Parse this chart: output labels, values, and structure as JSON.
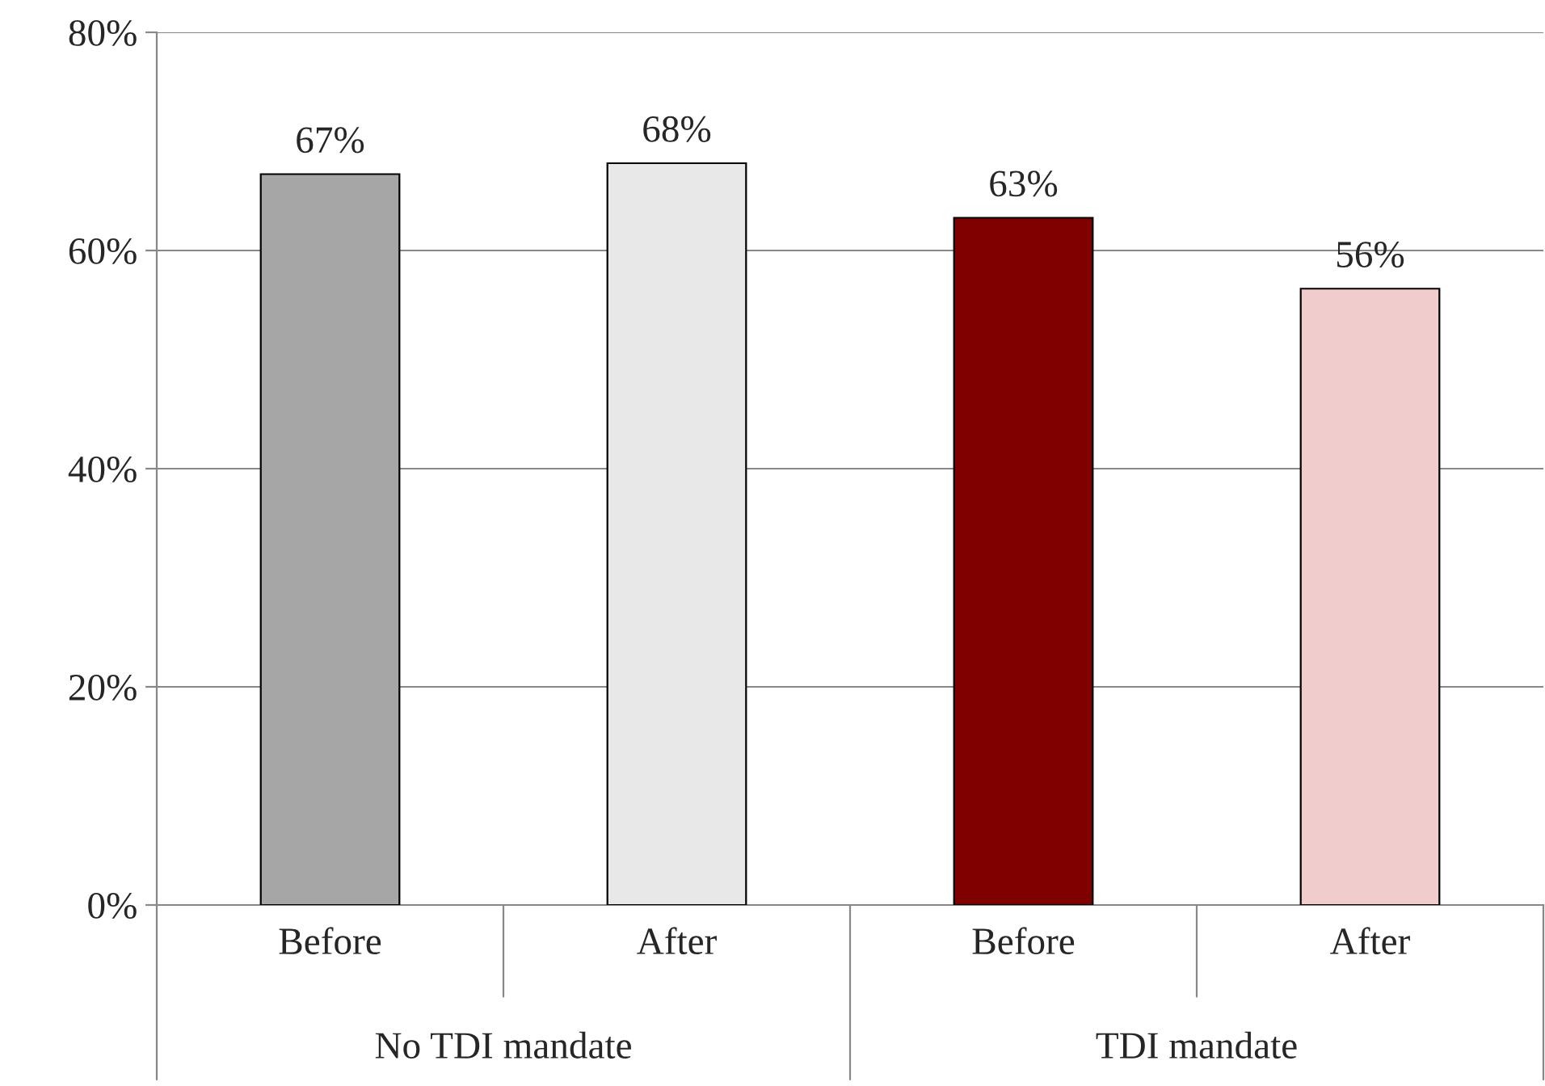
{
  "chart_data": {
    "type": "bar",
    "categories": [
      "Before",
      "After",
      "Before",
      "After"
    ],
    "values": [
      67,
      68,
      63,
      56.5
    ],
    "colors": [
      "#a6a6a6",
      "#e8e8e8",
      "#800000",
      "#f0cccc"
    ],
    "value_labels": [
      "67%",
      "68%",
      "63%",
      "56%"
    ],
    "ylim": [
      0,
      80
    ],
    "yticks": [
      {
        "value": 0,
        "label": "0%"
      },
      {
        "value": 20,
        "label": "20%"
      },
      {
        "value": 40,
        "label": "40%"
      },
      {
        "value": 60,
        "label": "60%"
      },
      {
        "value": 80,
        "label": "80%"
      }
    ],
    "grid": "y",
    "legend": false,
    "annotations": [
      "No TDI mandate",
      "TDI mandate"
    ]
  }
}
